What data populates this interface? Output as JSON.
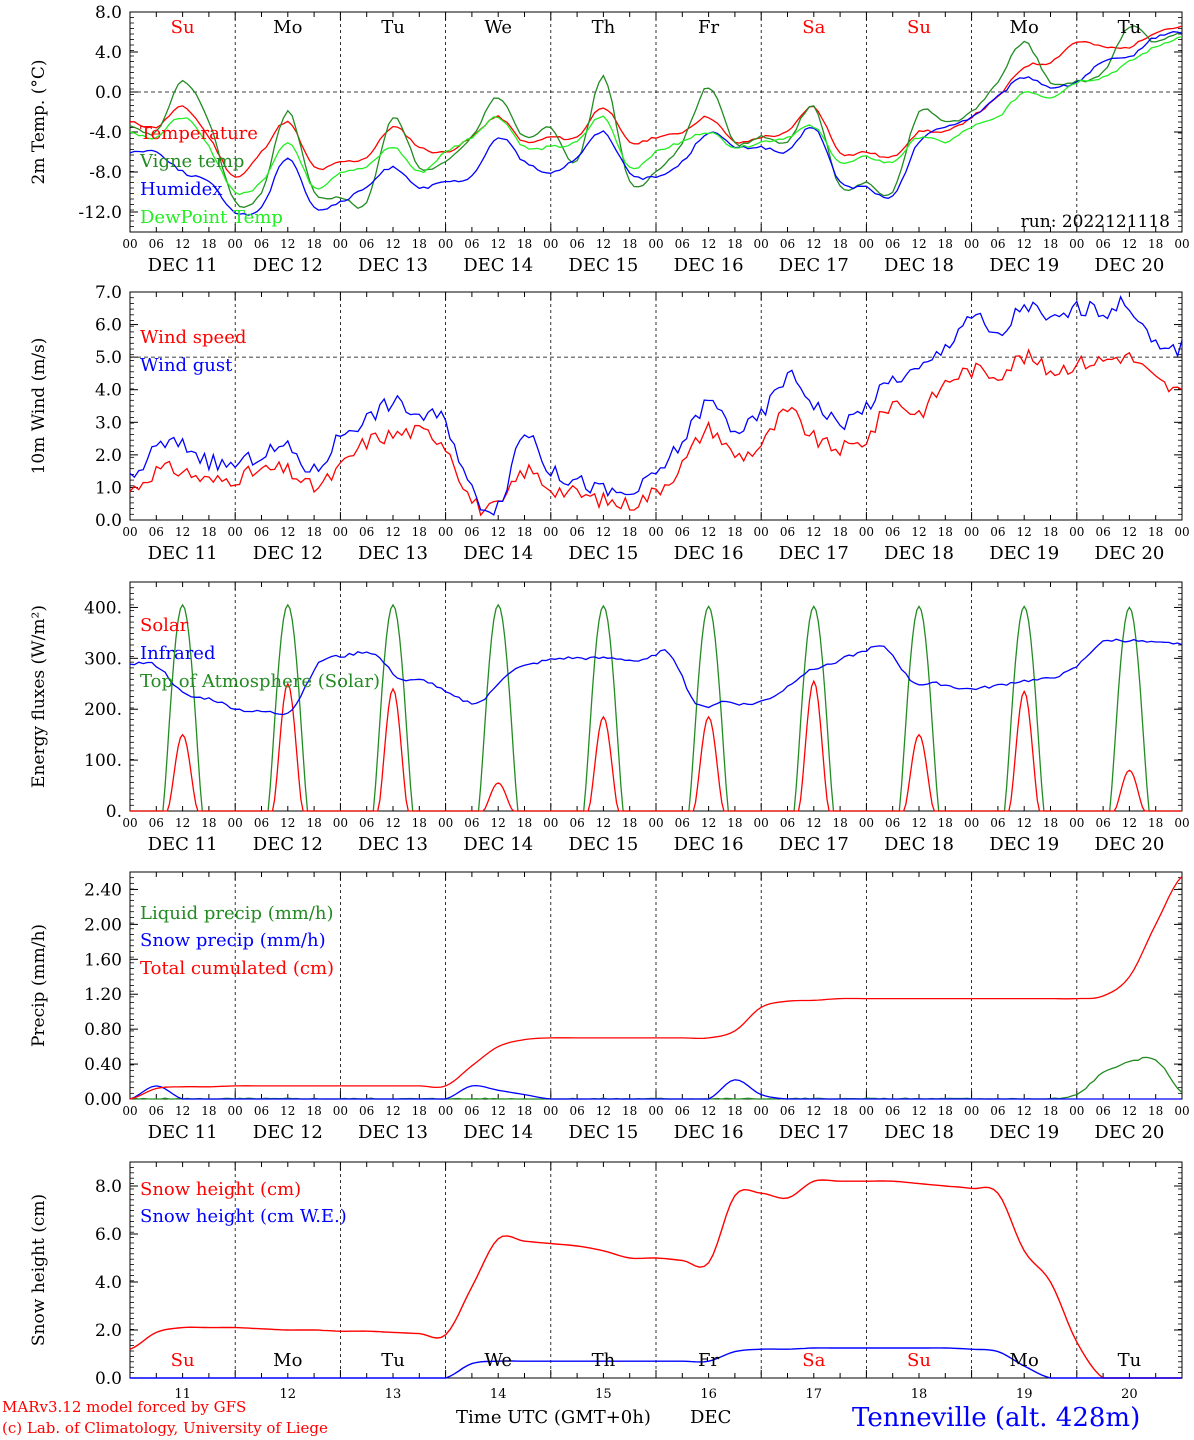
{
  "footer": {
    "credit_line1": "MARv3.12 model forced by GFS",
    "credit_line2": "(c) Lab. of Climatology, University of Liege",
    "xlabel": "Time UTC (GMT+0h)",
    "month": "DEC",
    "station": "Tenneville (alt. 428m)"
  },
  "colors": {
    "red": "#ff0000",
    "green": "#228b22",
    "blue": "#0000ff",
    "lightgreen": "#22ee22",
    "grid": "#000000"
  },
  "chart_data": [
    {
      "type": "line",
      "ylabel": "2m Temp. (°C)",
      "ylim": [
        -14,
        8
      ],
      "yticks": [
        "8.0",
        "4.0",
        "0.0",
        "-4.0",
        "-8.0",
        "-12.0"
      ],
      "dashed_zero": 0,
      "day_letters": [
        {
          "label": "Su",
          "color": "red"
        },
        {
          "label": "Mo",
          "color": "black"
        },
        {
          "label": "Tu",
          "color": "black"
        },
        {
          "label": "We",
          "color": "black"
        },
        {
          "label": "Th",
          "color": "black"
        },
        {
          "label": "Fr",
          "color": "black"
        },
        {
          "label": "Sa",
          "color": "red"
        },
        {
          "label": "Su",
          "color": "red"
        },
        {
          "label": "Mo",
          "color": "black"
        },
        {
          "label": "Tu",
          "color": "black"
        }
      ],
      "annotation": "run: 2022121118",
      "x_hours": [
        0,
        6,
        12,
        18,
        24,
        30,
        36,
        42,
        48,
        54,
        60,
        66,
        72,
        78,
        84,
        90,
        96,
        102,
        108,
        114,
        120,
        126,
        132,
        138,
        144,
        150,
        156,
        162,
        168,
        174,
        180,
        186,
        192,
        198,
        204,
        210,
        216,
        222,
        228,
        234,
        240
      ],
      "series": [
        {
          "name": "Temperature",
          "color": "red",
          "values": [
            -3,
            -3.5,
            -1.5,
            -4.5,
            -8.5,
            -6,
            -3,
            -7.5,
            -7,
            -6.5,
            -3.5,
            -5.5,
            -6,
            -4.5,
            -2.5,
            -5,
            -4.5,
            -4.5,
            -1.5,
            -5,
            -4.5,
            -4,
            -2.5,
            -5,
            -4.5,
            -4,
            -1.5,
            -6,
            -6,
            -6.5,
            -4,
            -4,
            -2.5,
            -0.5,
            2.5,
            3,
            5,
            4.5,
            4.5,
            6,
            6.5
          ]
        },
        {
          "name": "Vigne temp",
          "color": "green",
          "values": [
            -3.5,
            -4,
            1,
            -3,
            -11,
            -10,
            -2,
            -10,
            -10.5,
            -11,
            -2.5,
            -7.5,
            -7,
            -4.5,
            -0.5,
            -4.5,
            -3.5,
            -7,
            1.5,
            -9,
            -8,
            -5,
            0.5,
            -5,
            -4.5,
            -5,
            -1.5,
            -9.5,
            -9,
            -10,
            -2,
            -3,
            -2,
            1,
            5,
            1,
            1,
            2,
            6.5,
            5,
            6
          ]
        },
        {
          "name": "Humidex",
          "color": "blue",
          "values": [
            -6,
            -6,
            -8,
            -9,
            -12,
            -11.5,
            -6.5,
            -11.5,
            -11,
            -9.5,
            -7.5,
            -9.5,
            -9,
            -8.5,
            -4.5,
            -7,
            -8,
            -6.5,
            -4,
            -8,
            -8.5,
            -7,
            -4,
            -5.5,
            -5.5,
            -6,
            -3.5,
            -9,
            -9.5,
            -10.5,
            -5,
            -3.5,
            -2.5,
            -0.5,
            1.5,
            0.5,
            1,
            3,
            3.5,
            5.5,
            6
          ]
        },
        {
          "name": "DewPoint Temp",
          "color": "lightgreen",
          "values": [
            -4,
            -4.5,
            -2.5,
            -5.5,
            -10,
            -9,
            -5,
            -9.5,
            -8,
            -7.5,
            -5.5,
            -8,
            -6,
            -4.5,
            -2.5,
            -5.5,
            -5.5,
            -5,
            -2.5,
            -7.5,
            -6,
            -5,
            -4,
            -5.5,
            -5,
            -4.5,
            -3.5,
            -7,
            -6.5,
            -7,
            -4.5,
            -5,
            -3.5,
            -2.5,
            0,
            -0.5,
            1,
            1.5,
            3,
            4.5,
            5.5
          ]
        }
      ]
    },
    {
      "type": "line",
      "ylabel": "10m Wind (m/s)",
      "ylim": [
        0,
        7
      ],
      "yticks": [
        "7.0",
        "6.0",
        "5.0",
        "4.0",
        "3.0",
        "2.0",
        "1.0",
        "0.0"
      ],
      "dashed_ref": 5,
      "x_hours": [
        0,
        6,
        12,
        18,
        24,
        30,
        36,
        42,
        48,
        54,
        60,
        66,
        72,
        78,
        84,
        90,
        96,
        102,
        108,
        114,
        120,
        126,
        132,
        138,
        144,
        150,
        156,
        162,
        168,
        174,
        180,
        186,
        192,
        198,
        204,
        210,
        216,
        222,
        228,
        234,
        240
      ],
      "series": [
        {
          "name": "Wind speed",
          "color": "red",
          "values": [
            0.9,
            1.5,
            1.5,
            1.2,
            1.3,
            1.5,
            1.5,
            1.0,
            1.6,
            2.4,
            2.6,
            2.7,
            2.3,
            0.6,
            0.4,
            1.5,
            1.0,
            0.8,
            0.6,
            0.5,
            0.9,
            1.7,
            2.8,
            2.0,
            2.3,
            3.3,
            2.5,
            2.2,
            2.5,
            3.6,
            3.3,
            4.2,
            4.6,
            4.5,
            5.0,
            4.6,
            4.8,
            4.9,
            5.0,
            4.3,
            3.9
          ]
        },
        {
          "name": "Wind gust",
          "color": "blue",
          "values": [
            1.2,
            2.2,
            2.3,
            1.8,
            1.7,
            2.0,
            2.2,
            1.5,
            2.6,
            3.1,
            3.6,
            3.2,
            3.0,
            0.9,
            0.5,
            2.7,
            1.5,
            1.2,
            0.9,
            0.8,
            1.4,
            2.4,
            3.6,
            2.8,
            3.2,
            4.4,
            3.6,
            3.0,
            3.5,
            4.3,
            4.6,
            5.3,
            6.3,
            5.6,
            6.6,
            6.1,
            6.5,
            6.4,
            6.6,
            5.3,
            5.3
          ]
        }
      ]
    },
    {
      "type": "line",
      "ylabel": "Energy fluxes (W/m²)",
      "ylim": [
        0,
        450
      ],
      "yticks": [
        "400.",
        "300.",
        "200.",
        "100.",
        "0."
      ],
      "daily_peaks": {
        "Solar": [
          150,
          250,
          240,
          55,
          185,
          185,
          255,
          150,
          235,
          80
        ],
        "Top of Atmosphere (Solar)": [
          405,
          405,
          405,
          405,
          403,
          402,
          402,
          402,
          402,
          400
        ]
      },
      "series": [
        {
          "name": "Solar",
          "color": "red",
          "values": [
            0,
            150,
            0,
            250,
            0,
            240,
            0,
            55,
            0,
            185,
            0,
            185,
            0,
            255,
            0,
            150,
            0,
            235,
            0,
            80,
            0
          ]
        },
        {
          "name": "Infrared",
          "color": "blue",
          "values": [
            290,
            285,
            230,
            220,
            200,
            195,
            200,
            290,
            305,
            310,
            260,
            255,
            225,
            215,
            270,
            290,
            300,
            300,
            300,
            295,
            310,
            210,
            215,
            210,
            230,
            270,
            290,
            310,
            320,
            255,
            250,
            240,
            245,
            255,
            260,
            280,
            330,
            335,
            330,
            330
          ]
        },
        {
          "name": "Top of Atmosphere (Solar)",
          "color": "green",
          "values": [
            0,
            405,
            0,
            405,
            0,
            405,
            0,
            405,
            0,
            403,
            0,
            402,
            0,
            402,
            0,
            402,
            0,
            402,
            0,
            400,
            0
          ]
        }
      ]
    },
    {
      "type": "line",
      "ylabel": "Precip (mm/h)",
      "ylim": [
        0,
        2.6
      ],
      "yticks": [
        "2.40",
        "2.00",
        "1.60",
        "1.20",
        "0.80",
        "0.40",
        "0.00"
      ],
      "x_hours": [
        0,
        6,
        12,
        18,
        24,
        30,
        36,
        42,
        48,
        54,
        60,
        66,
        72,
        78,
        84,
        90,
        96,
        102,
        108,
        114,
        120,
        126,
        132,
        138,
        144,
        150,
        156,
        162,
        168,
        174,
        180,
        186,
        192,
        198,
        204,
        210,
        216,
        222,
        228,
        234,
        240
      ],
      "series": [
        {
          "name": "Liquid precip (mm/h)",
          "color": "green",
          "values": [
            0,
            0,
            0,
            0,
            0,
            0,
            0,
            0,
            0,
            0,
            0,
            0,
            0,
            0,
            0,
            0,
            0,
            0,
            0,
            0,
            0,
            0,
            0,
            0,
            0,
            0,
            0,
            0,
            0,
            0,
            0,
            0,
            0,
            0,
            0,
            0,
            0.05,
            0.3,
            0.42,
            0.45,
            0.08
          ]
        },
        {
          "name": "Snow precip (mm/h)",
          "color": "blue",
          "values": [
            0,
            0.15,
            0,
            0,
            0,
            0,
            0,
            0,
            0,
            0,
            0,
            0,
            0,
            0.15,
            0.1,
            0.05,
            0,
            0,
            0,
            0,
            0,
            0,
            0,
            0.22,
            0.05,
            0,
            0,
            0,
            0,
            0,
            0,
            0,
            0,
            0,
            0,
            0,
            0,
            0,
            0,
            0,
            0
          ]
        },
        {
          "name": "Total cumulated (cm)",
          "color": "red",
          "values": [
            0,
            0.12,
            0.14,
            0.14,
            0.15,
            0.15,
            0.15,
            0.15,
            0.15,
            0.15,
            0.15,
            0.15,
            0.15,
            0.38,
            0.6,
            0.68,
            0.7,
            0.7,
            0.7,
            0.7,
            0.7,
            0.7,
            0.7,
            0.78,
            1.05,
            1.12,
            1.13,
            1.15,
            1.15,
            1.15,
            1.15,
            1.15,
            1.15,
            1.15,
            1.15,
            1.15,
            1.15,
            1.18,
            1.4,
            2.0,
            2.55
          ]
        }
      ]
    },
    {
      "type": "line",
      "ylabel": "Snow height (cm)",
      "ylim": [
        0,
        9
      ],
      "yticks": [
        "8.0",
        "6.0",
        "4.0",
        "2.0",
        "0.0"
      ],
      "x_hours": [
        0,
        6,
        12,
        18,
        24,
        30,
        36,
        42,
        48,
        54,
        60,
        66,
        72,
        78,
        84,
        90,
        96,
        102,
        108,
        114,
        120,
        126,
        132,
        138,
        144,
        150,
        156,
        162,
        168,
        174,
        180,
        186,
        192,
        198,
        204,
        210,
        216,
        222,
        228,
        234,
        240
      ],
      "day_letters": [
        {
          "label": "Su",
          "color": "red"
        },
        {
          "label": "Mo",
          "color": "black"
        },
        {
          "label": "Tu",
          "color": "black"
        },
        {
          "label": "We",
          "color": "black"
        },
        {
          "label": "Th",
          "color": "black"
        },
        {
          "label": "Fr",
          "color": "black"
        },
        {
          "label": "Sa",
          "color": "red"
        },
        {
          "label": "Su",
          "color": "red"
        },
        {
          "label": "Mo",
          "color": "black"
        },
        {
          "label": "Tu",
          "color": "black"
        }
      ],
      "day_numbers": [
        "11",
        "12",
        "13",
        "14",
        "15",
        "16",
        "17",
        "18",
        "19",
        "20"
      ],
      "series": [
        {
          "name": "Snow height (cm)",
          "color": "red",
          "values": [
            1.2,
            1.9,
            2.1,
            2.1,
            2.1,
            2.05,
            2.0,
            2.0,
            1.95,
            1.95,
            1.9,
            1.85,
            1.8,
            3.8,
            5.8,
            5.7,
            5.6,
            5.5,
            5.3,
            5.0,
            5.0,
            4.9,
            4.8,
            7.6,
            7.7,
            7.5,
            8.2,
            8.2,
            8.2,
            8.2,
            8.1,
            8.0,
            7.9,
            7.7,
            5.3,
            4.0,
            1.5,
            0.0,
            0.0,
            0.0,
            0.0
          ]
        },
        {
          "name": "Snow height (cm W.E.)",
          "color": "blue",
          "values": [
            0,
            0,
            0,
            0,
            0,
            0,
            0,
            0,
            0,
            0,
            0,
            0,
            0,
            0.6,
            0.7,
            0.7,
            0.7,
            0.7,
            0.7,
            0.7,
            0.7,
            0.7,
            0.7,
            1.1,
            1.2,
            1.2,
            1.25,
            1.25,
            1.25,
            1.25,
            1.25,
            1.25,
            1.2,
            1.1,
            0.5,
            0.0,
            0.0,
            0.0,
            0.0,
            0.0,
            0.0
          ]
        }
      ]
    }
  ],
  "x_axis": {
    "hour_ticks": [
      "00",
      "06",
      "12",
      "18"
    ],
    "final_tick": "00",
    "date_labels": [
      "DEC 11",
      "DEC 12",
      "DEC 13",
      "DEC 14",
      "DEC 15",
      "DEC 16",
      "DEC 17",
      "DEC 18",
      "DEC 19",
      "DEC 20"
    ]
  }
}
